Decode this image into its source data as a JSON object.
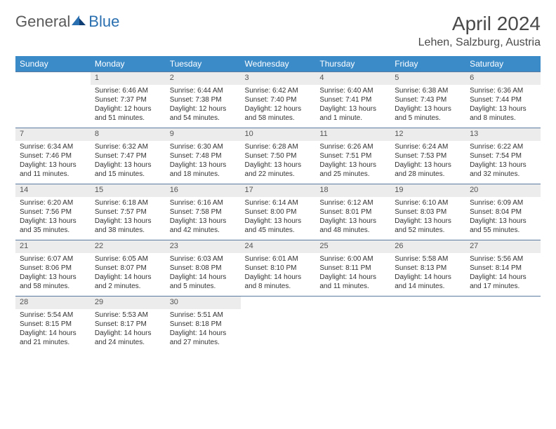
{
  "logo": {
    "general": "General",
    "blue": "Blue"
  },
  "title": "April 2024",
  "location": "Lehen, Salzburg, Austria",
  "colors": {
    "header_bg": "#3b8bc9",
    "header_text": "#ffffff",
    "daynum_bg": "#ececec",
    "divider": "#5a7aa0",
    "text": "#333333",
    "title_color": "#4a4a4a",
    "logo_gray": "#5a5a5a",
    "logo_blue": "#2a6fb0"
  },
  "weekdays": [
    "Sunday",
    "Monday",
    "Tuesday",
    "Wednesday",
    "Thursday",
    "Friday",
    "Saturday"
  ],
  "weeks": [
    {
      "nums": [
        "",
        "1",
        "2",
        "3",
        "4",
        "5",
        "6"
      ],
      "cells": [
        null,
        {
          "sunrise": "6:46 AM",
          "sunset": "7:37 PM",
          "daylight": "12 hours and 51 minutes."
        },
        {
          "sunrise": "6:44 AM",
          "sunset": "7:38 PM",
          "daylight": "12 hours and 54 minutes."
        },
        {
          "sunrise": "6:42 AM",
          "sunset": "7:40 PM",
          "daylight": "12 hours and 58 minutes."
        },
        {
          "sunrise": "6:40 AM",
          "sunset": "7:41 PM",
          "daylight": "13 hours and 1 minute."
        },
        {
          "sunrise": "6:38 AM",
          "sunset": "7:43 PM",
          "daylight": "13 hours and 5 minutes."
        },
        {
          "sunrise": "6:36 AM",
          "sunset": "7:44 PM",
          "daylight": "13 hours and 8 minutes."
        }
      ]
    },
    {
      "nums": [
        "7",
        "8",
        "9",
        "10",
        "11",
        "12",
        "13"
      ],
      "cells": [
        {
          "sunrise": "6:34 AM",
          "sunset": "7:46 PM",
          "daylight": "13 hours and 11 minutes."
        },
        {
          "sunrise": "6:32 AM",
          "sunset": "7:47 PM",
          "daylight": "13 hours and 15 minutes."
        },
        {
          "sunrise": "6:30 AM",
          "sunset": "7:48 PM",
          "daylight": "13 hours and 18 minutes."
        },
        {
          "sunrise": "6:28 AM",
          "sunset": "7:50 PM",
          "daylight": "13 hours and 22 minutes."
        },
        {
          "sunrise": "6:26 AM",
          "sunset": "7:51 PM",
          "daylight": "13 hours and 25 minutes."
        },
        {
          "sunrise": "6:24 AM",
          "sunset": "7:53 PM",
          "daylight": "13 hours and 28 minutes."
        },
        {
          "sunrise": "6:22 AM",
          "sunset": "7:54 PM",
          "daylight": "13 hours and 32 minutes."
        }
      ]
    },
    {
      "nums": [
        "14",
        "15",
        "16",
        "17",
        "18",
        "19",
        "20"
      ],
      "cells": [
        {
          "sunrise": "6:20 AM",
          "sunset": "7:56 PM",
          "daylight": "13 hours and 35 minutes."
        },
        {
          "sunrise": "6:18 AM",
          "sunset": "7:57 PM",
          "daylight": "13 hours and 38 minutes."
        },
        {
          "sunrise": "6:16 AM",
          "sunset": "7:58 PM",
          "daylight": "13 hours and 42 minutes."
        },
        {
          "sunrise": "6:14 AM",
          "sunset": "8:00 PM",
          "daylight": "13 hours and 45 minutes."
        },
        {
          "sunrise": "6:12 AM",
          "sunset": "8:01 PM",
          "daylight": "13 hours and 48 minutes."
        },
        {
          "sunrise": "6:10 AM",
          "sunset": "8:03 PM",
          "daylight": "13 hours and 52 minutes."
        },
        {
          "sunrise": "6:09 AM",
          "sunset": "8:04 PM",
          "daylight": "13 hours and 55 minutes."
        }
      ]
    },
    {
      "nums": [
        "21",
        "22",
        "23",
        "24",
        "25",
        "26",
        "27"
      ],
      "cells": [
        {
          "sunrise": "6:07 AM",
          "sunset": "8:06 PM",
          "daylight": "13 hours and 58 minutes."
        },
        {
          "sunrise": "6:05 AM",
          "sunset": "8:07 PM",
          "daylight": "14 hours and 2 minutes."
        },
        {
          "sunrise": "6:03 AM",
          "sunset": "8:08 PM",
          "daylight": "14 hours and 5 minutes."
        },
        {
          "sunrise": "6:01 AM",
          "sunset": "8:10 PM",
          "daylight": "14 hours and 8 minutes."
        },
        {
          "sunrise": "6:00 AM",
          "sunset": "8:11 PM",
          "daylight": "14 hours and 11 minutes."
        },
        {
          "sunrise": "5:58 AM",
          "sunset": "8:13 PM",
          "daylight": "14 hours and 14 minutes."
        },
        {
          "sunrise": "5:56 AM",
          "sunset": "8:14 PM",
          "daylight": "14 hours and 17 minutes."
        }
      ]
    },
    {
      "nums": [
        "28",
        "29",
        "30",
        "",
        "",
        "",
        ""
      ],
      "cells": [
        {
          "sunrise": "5:54 AM",
          "sunset": "8:15 PM",
          "daylight": "14 hours and 21 minutes."
        },
        {
          "sunrise": "5:53 AM",
          "sunset": "8:17 PM",
          "daylight": "14 hours and 24 minutes."
        },
        {
          "sunrise": "5:51 AM",
          "sunset": "8:18 PM",
          "daylight": "14 hours and 27 minutes."
        },
        null,
        null,
        null,
        null
      ]
    }
  ],
  "labels": {
    "sunrise": "Sunrise:",
    "sunset": "Sunset:",
    "daylight": "Daylight:"
  }
}
